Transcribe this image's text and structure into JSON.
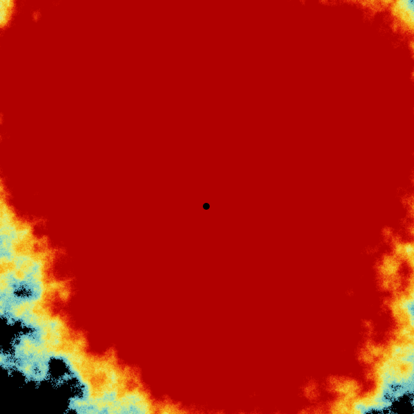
{
  "image": {
    "kind": "weather radar sweep",
    "palette": [
      "#000000",
      "#3a8fb0",
      "#8fd8c0",
      "#e8f070",
      "#f5c020",
      "#f07010",
      "#d81808",
      "#b00000"
    ],
    "background_color": "#000000",
    "center_marker": "radar-site-dot"
  }
}
